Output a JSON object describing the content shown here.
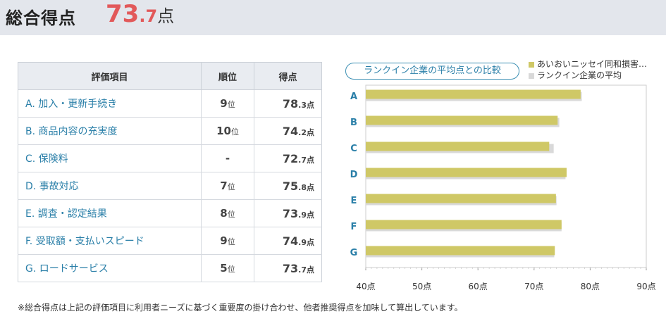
{
  "header": {
    "title": "総合得点",
    "score_int": "73",
    "score_dec": ".7",
    "score_unit": "点"
  },
  "table": {
    "headers": [
      "評価項目",
      "順位",
      "得点"
    ],
    "rows": [
      {
        "item": "A.  加入・更新手続き",
        "rank": "9",
        "rank_unit": "位",
        "score_int": "78",
        "score_dec": ".3点"
      },
      {
        "item": "B.  商品内容の充実度",
        "rank": "10",
        "rank_unit": "位",
        "score_int": "74",
        "score_dec": ".2点"
      },
      {
        "item": "C.  保険料",
        "rank": "-",
        "rank_unit": "",
        "score_int": "72",
        "score_dec": ".7点"
      },
      {
        "item": "D.  事故対応",
        "rank": "7",
        "rank_unit": "位",
        "score_int": "75",
        "score_dec": ".8点"
      },
      {
        "item": "E.  調査・認定結果",
        "rank": "8",
        "rank_unit": "位",
        "score_int": "73",
        "score_dec": ".9点"
      },
      {
        "item": "F.  受取額・支払いスピード",
        "rank": "9",
        "rank_unit": "位",
        "score_int": "74",
        "score_dec": ".9点"
      },
      {
        "item": "G.  ロードサービス",
        "rank": "5",
        "rank_unit": "位",
        "score_int": "73",
        "score_dec": ".7点"
      }
    ]
  },
  "chart_pill": "ランクイン企業の平均点との比較",
  "footnote": "※総合得点は上記の評価項目に利用者ニーズに基づく重要度の掛け合わせ、他者推奨得点を加味して算出しています。",
  "colors": {
    "company": "#cfc866",
    "average": "#d9d9d9",
    "accent": "#e2595a",
    "link": "#2a7fa8"
  },
  "chart_data": {
    "type": "bar",
    "orientation": "horizontal",
    "categories": [
      "A",
      "B",
      "C",
      "D",
      "E",
      "F",
      "G"
    ],
    "series": [
      {
        "name": "あいおいニッセイ同和損害…",
        "values": [
          78.3,
          74.2,
          72.7,
          75.8,
          73.9,
          74.9,
          73.7
        ]
      },
      {
        "name": "ランクイン企業の平均",
        "values": [
          78.5,
          74.5,
          73.5,
          75.6,
          74.0,
          74.9,
          73.6
        ]
      }
    ],
    "xlim": [
      40,
      90
    ],
    "xticks": [
      "40点",
      "50点",
      "60点",
      "70点",
      "80点",
      "90点"
    ],
    "xtick_values": [
      40,
      50,
      60,
      70,
      80,
      90
    ],
    "grid": false,
    "legend": "top-right"
  }
}
